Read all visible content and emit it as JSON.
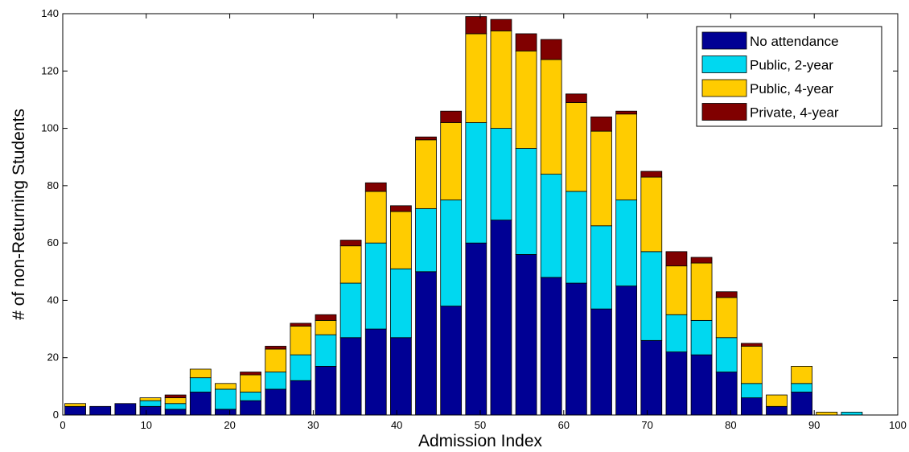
{
  "chart_data": {
    "type": "bar",
    "stacked": true,
    "xlabel": "Admission Index",
    "ylabel": "# of non-Returning Students",
    "xlim": [
      0,
      100
    ],
    "ylim": [
      0,
      140
    ],
    "xticks": [
      0,
      10,
      20,
      30,
      40,
      50,
      60,
      70,
      80,
      90,
      100
    ],
    "yticks": [
      0,
      20,
      40,
      60,
      80,
      100,
      120,
      140
    ],
    "x": [
      1.5,
      4.5,
      7.5,
      10.5,
      13.5,
      16.5,
      19.5,
      22.5,
      25.5,
      28.5,
      31.5,
      34.5,
      37.5,
      40.5,
      43.5,
      46.5,
      49.5,
      52.5,
      55.5,
      58.5,
      61.5,
      64.5,
      67.5,
      70.5,
      73.5,
      76.5,
      79.5,
      82.5,
      85.5,
      88.5,
      91.5,
      94.5
    ],
    "bar_width": 2.5,
    "grid": false,
    "legend_position": "top-right",
    "series": [
      {
        "name": "No attendance",
        "color": "#000094",
        "values": [
          3,
          3,
          4,
          3,
          2,
          8,
          2,
          5,
          9,
          12,
          17,
          27,
          30,
          27,
          50,
          38,
          60,
          68,
          56,
          48,
          46,
          37,
          45,
          26,
          22,
          21,
          15,
          6,
          3,
          8,
          0,
          0
        ]
      },
      {
        "name": "Public, 2-year",
        "color": "#00d8f0",
        "values": [
          0,
          0,
          0,
          2,
          2,
          5,
          7,
          3,
          6,
          9,
          11,
          19,
          30,
          24,
          22,
          37,
          42,
          32,
          37,
          36,
          32,
          29,
          30,
          31,
          13,
          12,
          12,
          5,
          0,
          3,
          0,
          1
        ]
      },
      {
        "name": "Public, 4-year",
        "color": "#ffcc00",
        "values": [
          1,
          0,
          0,
          1,
          2,
          3,
          2,
          6,
          8,
          10,
          5,
          13,
          18,
          20,
          24,
          27,
          31,
          34,
          34,
          40,
          31,
          33,
          30,
          26,
          17,
          20,
          14,
          13,
          4,
          6,
          1,
          0
        ]
      },
      {
        "name": "Private, 4-year",
        "color": "#800000",
        "values": [
          0,
          0,
          0,
          0,
          1,
          0,
          0,
          1,
          1,
          1,
          2,
          2,
          3,
          2,
          1,
          4,
          6,
          4,
          6,
          7,
          3,
          5,
          1,
          2,
          5,
          2,
          2,
          1,
          0,
          0,
          0,
          0
        ]
      }
    ]
  }
}
